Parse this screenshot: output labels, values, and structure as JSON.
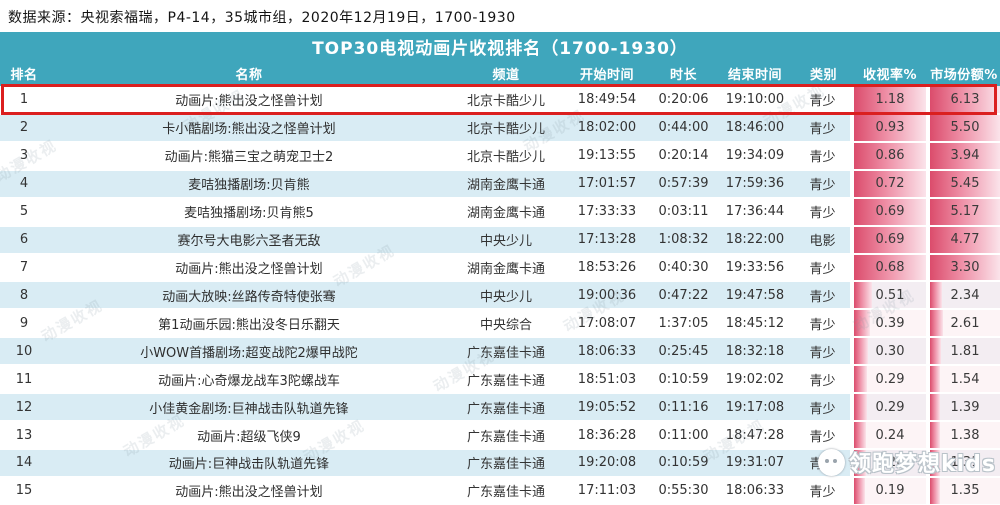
{
  "source_line": "数据来源：央视索福瑞，P4-14，35城市组，2020年12月19日，1700-1930",
  "chart_data": {
    "type": "table",
    "title": "TOP30电视动画片收视排名（1700-1930）",
    "columns": [
      "排名",
      "名称",
      "频道",
      "开始时间",
      "时长",
      "结束时间",
      "类别",
      "收视率%",
      "市场份额%"
    ],
    "rows": [
      {
        "rank": "1",
        "name": "动画片:熊出没之怪兽计划",
        "channel": "北京卡酷少儿",
        "start": "18:49:54",
        "duration": "0:20:06",
        "end": "19:10:00",
        "category": "青少",
        "rating": "1.18",
        "share": "6.13",
        "rating_fill": 100,
        "share_fill": 100,
        "highlight": true
      },
      {
        "rank": "2",
        "name": "卡小酷剧场:熊出没之怪兽计划",
        "channel": "北京卡酷少儿",
        "start": "18:02:00",
        "duration": "0:44:00",
        "end": "18:46:00",
        "category": "青少",
        "rating": "0.93",
        "share": "5.50",
        "rating_fill": 100,
        "share_fill": 100
      },
      {
        "rank": "3",
        "name": "动画片:熊猫三宝之萌宠卫士2",
        "channel": "北京卡酷少儿",
        "start": "19:13:55",
        "duration": "0:20:14",
        "end": "19:34:09",
        "category": "青少",
        "rating": "0.86",
        "share": "3.94",
        "rating_fill": 100,
        "share_fill": 100
      },
      {
        "rank": "4",
        "name": "麦咭独播剧场:贝肯熊",
        "channel": "湖南金鹰卡通",
        "start": "17:01:57",
        "duration": "0:57:39",
        "end": "17:59:36",
        "category": "青少",
        "rating": "0.72",
        "share": "5.45",
        "rating_fill": 100,
        "share_fill": 100
      },
      {
        "rank": "5",
        "name": "麦咭独播剧场:贝肯熊5",
        "channel": "湖南金鹰卡通",
        "start": "17:33:33",
        "duration": "0:03:11",
        "end": "17:36:44",
        "category": "青少",
        "rating": "0.69",
        "share": "5.17",
        "rating_fill": 100,
        "share_fill": 100
      },
      {
        "rank": "6",
        "name": "赛尔号大电影六圣者无敌",
        "channel": "中央少儿",
        "start": "17:13:28",
        "duration": "1:08:32",
        "end": "18:22:00",
        "category": "电影",
        "rating": "0.69",
        "share": "4.77",
        "rating_fill": 100,
        "share_fill": 100
      },
      {
        "rank": "7",
        "name": "动画片:熊出没之怪兽计划",
        "channel": "湖南金鹰卡通",
        "start": "18:53:26",
        "duration": "0:40:30",
        "end": "19:33:56",
        "category": "青少",
        "rating": "0.68",
        "share": "3.30",
        "rating_fill": 100,
        "share_fill": 100
      },
      {
        "rank": "8",
        "name": "动画大放映:丝路传奇特使张骞",
        "channel": "中央少儿",
        "start": "19:00:36",
        "duration": "0:47:22",
        "end": "19:47:58",
        "category": "青少",
        "rating": "0.51",
        "share": "2.34",
        "rating_fill": 25,
        "share_fill": 17
      },
      {
        "rank": "9",
        "name": "第1动画乐园:熊出没冬日乐翻天",
        "channel": "中央综合",
        "start": "17:08:07",
        "duration": "1:37:05",
        "end": "18:45:12",
        "category": "青少",
        "rating": "0.39",
        "share": "2.61",
        "rating_fill": 22,
        "share_fill": 18
      },
      {
        "rank": "10",
        "name": "小WOW首播剧场:超变战陀2爆甲战陀",
        "channel": "广东嘉佳卡通",
        "start": "18:06:33",
        "duration": "0:25:45",
        "end": "18:32:18",
        "category": "青少",
        "rating": "0.30",
        "share": "1.81",
        "rating_fill": 19,
        "share_fill": 15
      },
      {
        "rank": "11",
        "name": "动画片:心奇爆龙战车3陀螺战车",
        "channel": "广东嘉佳卡通",
        "start": "18:51:03",
        "duration": "0:10:59",
        "end": "19:02:02",
        "category": "青少",
        "rating": "0.29",
        "share": "1.54",
        "rating_fill": 18,
        "share_fill": 14
      },
      {
        "rank": "12",
        "name": "小佳黄金剧场:巨神战击队轨道先锋",
        "channel": "广东嘉佳卡通",
        "start": "19:05:52",
        "duration": "0:11:16",
        "end": "19:17:08",
        "category": "青少",
        "rating": "0.29",
        "share": "1.39",
        "rating_fill": 18,
        "share_fill": 14
      },
      {
        "rank": "13",
        "name": "动画片:超级飞侠9",
        "channel": "广东嘉佳卡通",
        "start": "18:36:28",
        "duration": "0:11:00",
        "end": "18:47:28",
        "category": "青少",
        "rating": "0.24",
        "share": "1.38",
        "rating_fill": 16,
        "share_fill": 14
      },
      {
        "rank": "14",
        "name": "动画片:巨神战击队轨道先锋",
        "channel": "广东嘉佳卡通",
        "start": "19:20:08",
        "duration": "0:10:59",
        "end": "19:31:07",
        "category": "青少",
        "rating": "0.20",
        "share": "1.31",
        "rating_fill": 16,
        "share_fill": 14
      },
      {
        "rank": "15",
        "name": "动画片:熊出没之怪兽计划",
        "channel": "广东嘉佳卡通",
        "start": "17:11:03",
        "duration": "0:55:30",
        "end": "18:06:33",
        "category": "青少",
        "rating": "0.19",
        "share": "1.35",
        "rating_fill": 15,
        "share_fill": 14
      }
    ],
    "layout_hints": {
      "highlighted_rank": "1",
      "bar_columns": [
        "收视率%",
        "市场份额%"
      ],
      "row_alternating": true
    }
  },
  "watermark": {
    "diagonal_text": "动漫收视",
    "logo_text": "领跑梦想kids"
  },
  "colors": {
    "header_teal": "#3fa6bc",
    "highlight_red": "#db1f1f",
    "row_alt_blue": "#d9ecf4",
    "bar_deep_pink": "#db4c6c",
    "bar_light_pink": "#fbe3ea"
  }
}
